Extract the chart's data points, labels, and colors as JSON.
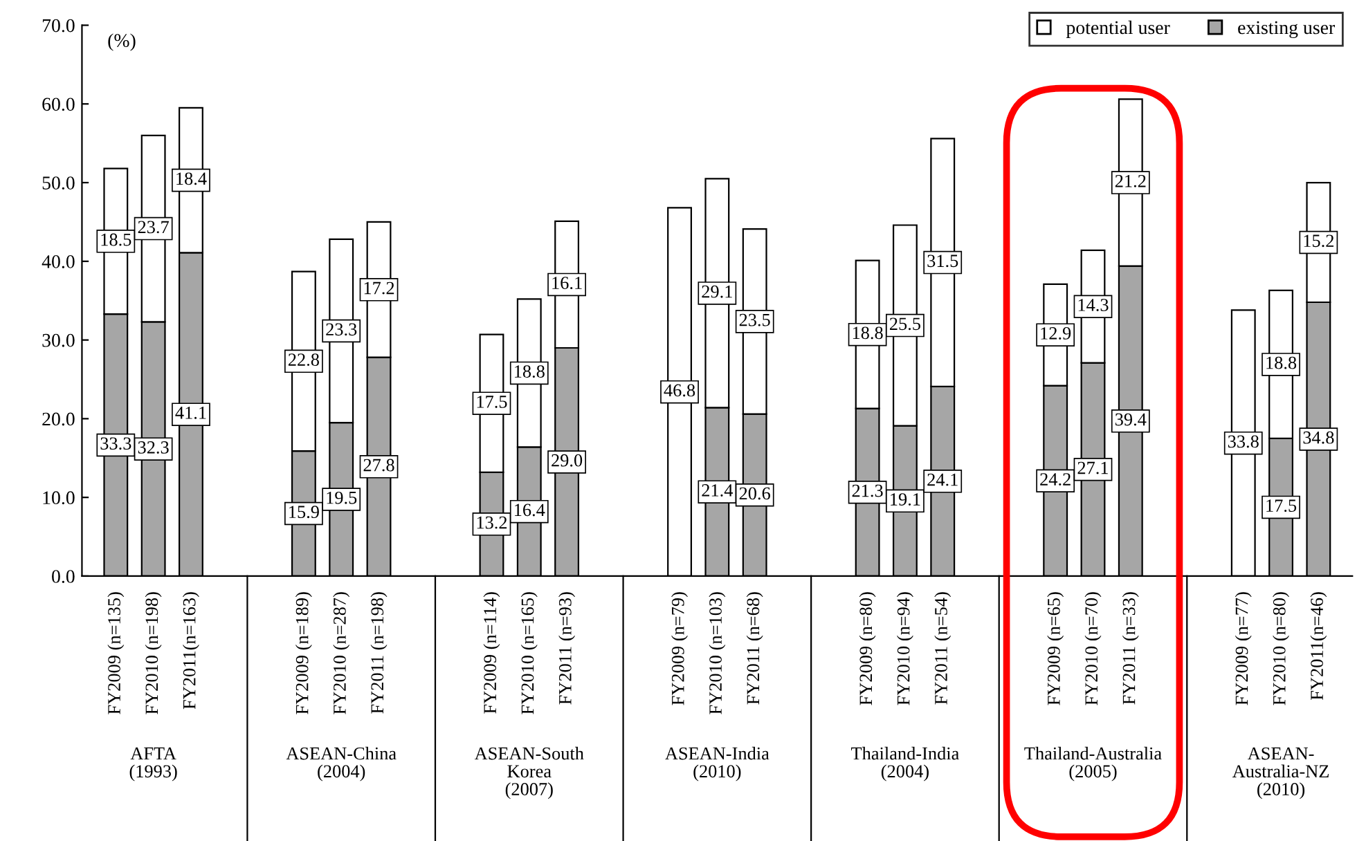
{
  "chart_data": {
    "type": "bar",
    "stacked": true,
    "ylabel": "(%)",
    "legend": "top right",
    "categories": [
      "FY2009 (n=135)",
      "FY2010 (n=198)",
      "FY2011(n=163)",
      null,
      null,
      "FY2009 (n=189)",
      "FY2010 (n=287)",
      "FY2011 (n=198)",
      null,
      null,
      "FY2009 (n=114)",
      "FY2010 (n=165)",
      "FY2011 (n=93)",
      null,
      null,
      "FY2009 (n=79)",
      "FY2010 (n=103)",
      "FY2011 (n=68)",
      null,
      null,
      "FY2009 (n=80)",
      "FY2010 (n=94)",
      "FY2011 (n=54)",
      null,
      null,
      "FY2009 (n=65)",
      "FY2010 (n=70)",
      "FY2011 (n=33)",
      null,
      null,
      "FY2009 (n=77)",
      "FY2010 (n=80)",
      "FY2011(n=46)"
    ],
    "series": [
      {
        "name": "existing user",
        "color": "#a6a6a6",
        "values": [
          33.3,
          32.3,
          41.1,
          null,
          null,
          15.9,
          19.5,
          27.8,
          null,
          null,
          13.2,
          16.4,
          29.0,
          null,
          null,
          null,
          21.4,
          20.6,
          null,
          null,
          21.3,
          19.1,
          24.1,
          null,
          null,
          24.2,
          27.1,
          39.4,
          null,
          null,
          null,
          17.5,
          34.8
        ],
        "value_labels": [
          "33.3",
          "32.3",
          "41.1",
          null,
          null,
          "15.9",
          "19.5",
          "27.8",
          null,
          null,
          "13.2",
          "16.4",
          "29.0",
          null,
          null,
          null,
          "21.4",
          "20.6",
          null,
          null,
          "21.3",
          "19.1",
          "24.1",
          null,
          null,
          "24.2",
          "27.1",
          "39.4",
          null,
          null,
          null,
          "17.5",
          "34.8"
        ]
      },
      {
        "name": "potential user",
        "color": "#ffffff",
        "values": [
          18.5,
          23.7,
          18.4,
          null,
          null,
          22.8,
          23.3,
          17.2,
          null,
          null,
          17.5,
          18.8,
          16.1,
          null,
          null,
          46.8,
          29.1,
          23.5,
          null,
          null,
          18.8,
          25.5,
          31.5,
          null,
          null,
          12.9,
          14.3,
          21.2,
          null,
          null,
          33.8,
          18.8,
          15.2
        ],
        "value_labels": [
          "18.5",
          "23.7",
          "18.4",
          null,
          null,
          "22.8",
          "23.3",
          "17.2",
          null,
          null,
          "17.5",
          "18.8",
          "16.1",
          null,
          null,
          "46.8",
          "29.1",
          "23.5",
          null,
          null,
          "18.8",
          "25.5",
          "31.5",
          null,
          null,
          "12.9",
          "14.3",
          "21.2",
          null,
          null,
          "33.8",
          "18.8",
          "15.2"
        ]
      }
    ],
    "ylim": [
      0,
      70
    ],
    "yticks": [
      {
        "value": 0,
        "label": "0.0"
      },
      {
        "value": 10,
        "label": "10.0"
      },
      {
        "value": 20,
        "label": "20.0"
      },
      {
        "value": 30,
        "label": "30.0"
      },
      {
        "value": 40,
        "label": "40.0"
      },
      {
        "value": 50,
        "label": "50.0"
      },
      {
        "value": 60,
        "label": "60.0"
      },
      {
        "value": 70,
        "label": "70.0"
      }
    ],
    "annotations": [
      "AFTA\n(1993)",
      "ASEAN-China\n(2004)",
      "ASEAN-South\nKorea\n(2007)",
      "ASEAN-India\n(2010)",
      "Thailand-India\n(2004)",
      "Thailand-Australia\n(2005)",
      "ASEAN-\nAustralia-NZ\n(2010)"
    ]
  }
}
